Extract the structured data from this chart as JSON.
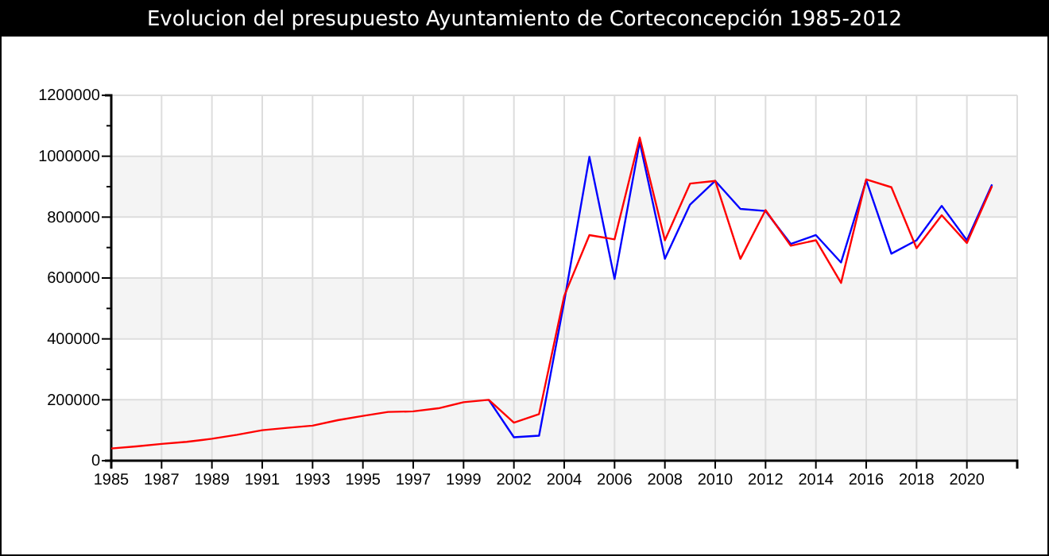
{
  "chart_data": {
    "type": "line",
    "title": "Evolucion del presupuesto Ayuntamiento de Corteconcepción 1985-2012",
    "categories": [
      "1985",
      null,
      "1987",
      null,
      "1989",
      null,
      "1991",
      null,
      "1993",
      null,
      "1995",
      null,
      "1997",
      null,
      "1999",
      null,
      "2002",
      null,
      "2004",
      null,
      "2006",
      null,
      "2008",
      null,
      "2010",
      null,
      "2012",
      null,
      "2014",
      null,
      "2016",
      null,
      "2018",
      null,
      "2020",
      null
    ],
    "series": [
      {
        "color": "#0000ff",
        "values": [
          null,
          null,
          null,
          null,
          null,
          null,
          null,
          null,
          null,
          null,
          null,
          null,
          null,
          null,
          null,
          200000,
          77000,
          82000,
          523000,
          998000,
          597000,
          1047000,
          663000,
          841000,
          919000,
          827000,
          820000,
          712000,
          741000,
          651000,
          921000,
          680000,
          724000,
          837000,
          724000,
          907000
        ]
      },
      {
        "color": "#ff0000",
        "values": [
          40000,
          47000,
          55000,
          62000,
          72000,
          85000,
          100000,
          108000,
          115000,
          133000,
          147000,
          160000,
          162000,
          172000,
          192000,
          200000,
          125000,
          153000,
          541000,
          741000,
          727000,
          1061000,
          724000,
          910000,
          919000,
          663000,
          823000,
          706000,
          724000,
          584000,
          924000,
          898000,
          698000,
          806000,
          715000,
          902000
        ]
      }
    ],
    "ylim": [
      0,
      1200000
    ],
    "yticks": [
      0,
      {
        "value": 100000,
        "label": null
      },
      200000,
      {
        "value": 300000,
        "label": null
      },
      400000,
      {
        "value": 500000,
        "label": null
      },
      600000,
      {
        "value": 700000,
        "label": null
      },
      800000,
      {
        "value": 900000,
        "label": null
      },
      1000000,
      {
        "value": 1100000,
        "label": null
      },
      1200000
    ],
    "grid": true
  }
}
